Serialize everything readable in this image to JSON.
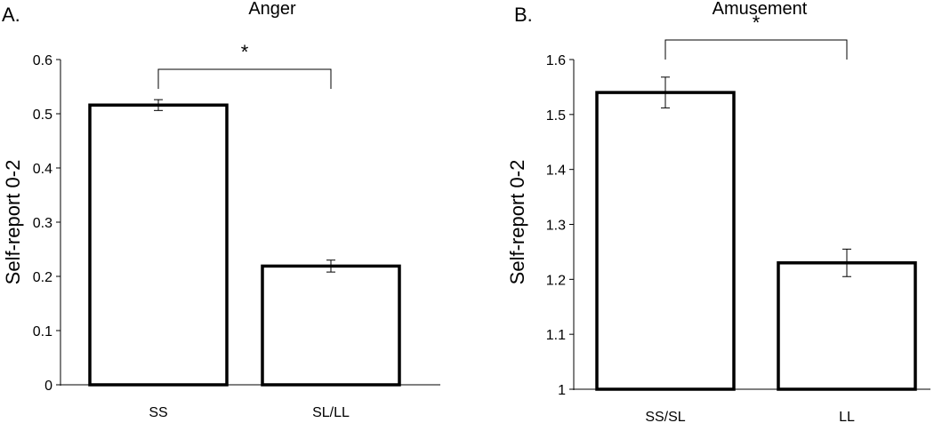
{
  "chart_data": [
    {
      "type": "bar",
      "panel_label": "A.",
      "title": "Anger",
      "ylabel": "Self-report 0-2",
      "xlabel": "",
      "categories": [
        "SS",
        "SL/LL"
      ],
      "values": [
        0.516,
        0.219
      ],
      "errors": [
        0.01,
        0.011
      ],
      "ylim": [
        0,
        0.6
      ],
      "yticks": [
        0,
        0.1,
        0.2,
        0.3,
        0.4,
        0.5,
        0.6
      ],
      "ytick_labels": [
        "0",
        "0.1",
        "0.2",
        "0.3",
        "0.4",
        "0.5",
        "0.6"
      ],
      "significance": {
        "between": [
          "SS",
          "SL/LL"
        ],
        "marker": "*"
      },
      "grid": false,
      "legend": "none"
    },
    {
      "type": "bar",
      "panel_label": "B.",
      "title": "Amusement",
      "ylabel": "Self-report 0-2",
      "xlabel": "",
      "categories": [
        "SS/SL",
        "LL"
      ],
      "values": [
        1.54,
        1.23
      ],
      "errors": [
        0.028,
        0.025
      ],
      "ylim": [
        1,
        1.6
      ],
      "yticks": [
        1,
        1.1,
        1.2,
        1.3,
        1.4,
        1.5,
        1.6
      ],
      "ytick_labels": [
        "1",
        "1.1",
        "1.2",
        "1.3",
        "1.4",
        "1.5",
        "1.6"
      ],
      "significance": {
        "between": [
          "SS/SL",
          "LL"
        ],
        "marker": "*"
      },
      "grid": false,
      "legend": "none"
    }
  ]
}
